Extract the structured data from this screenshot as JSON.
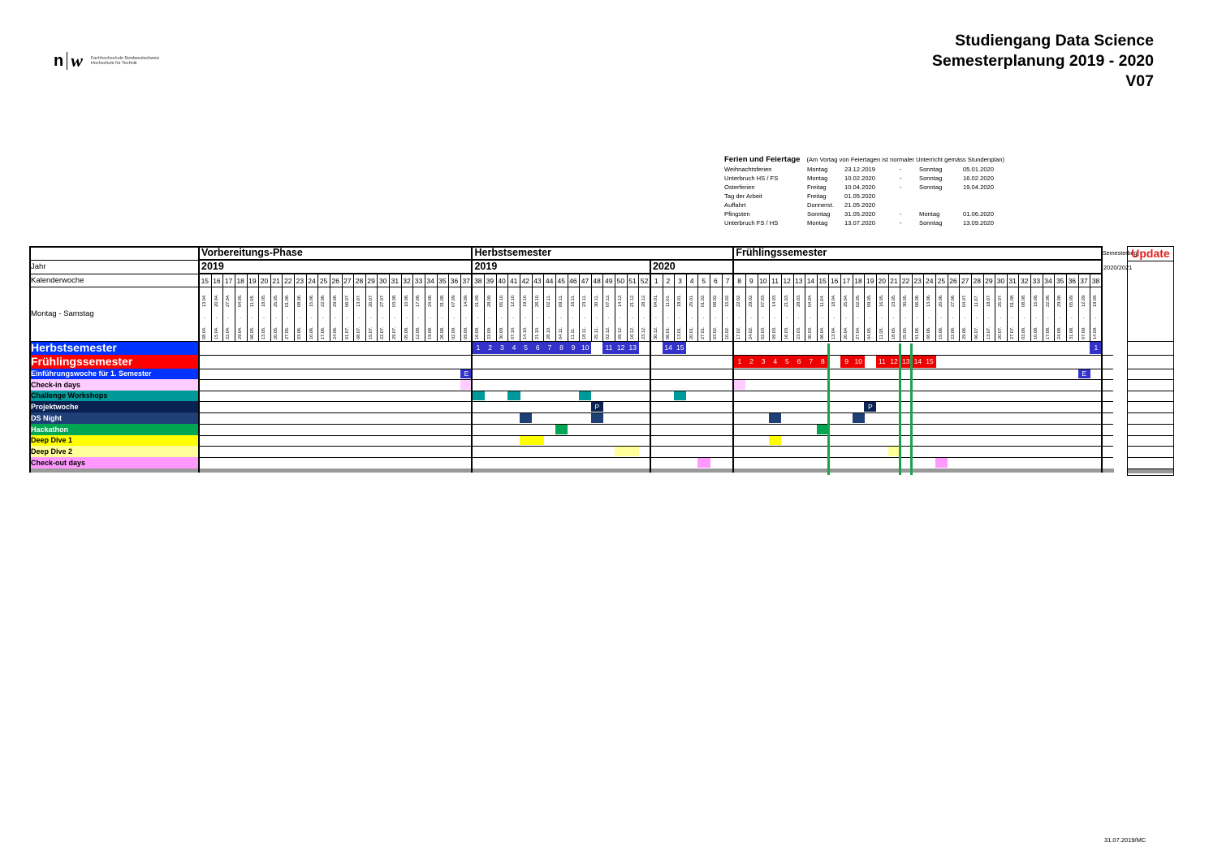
{
  "logo": {
    "mark_n": "n",
    "mark_w": "w",
    "line1": "Fachhochschule Nordwestschweiz",
    "line2": "Hochschule für Technik"
  },
  "title": {
    "line1": "Studiengang Data Science",
    "line2": "Semesterplanung 2019 - 2020",
    "line3": "V07"
  },
  "holidays": {
    "heading": "Ferien und Feiertage",
    "note": "(Am Vortag von Feiertagen ist normaler Unterricht gemäss Stundenplan)",
    "rows": [
      [
        "Weihnachtsferien",
        "Montag",
        "23.12.2019",
        "-",
        "Sonntag",
        "05.01.2020"
      ],
      [
        "Unterbruch HS / FS",
        "Montag",
        "10.02.2020",
        "-",
        "Sonntag",
        "16.02.2020"
      ],
      [
        "Osterferien",
        "Freitag",
        "10.04.2020",
        "-",
        "Sonntag",
        "19.04.2020"
      ],
      [
        "Tag der Arbeit",
        "Freitag",
        "01.05.2020",
        "",
        "",
        ""
      ],
      [
        "Auffahrt",
        "Donnerst.",
        "21.05.2020",
        "",
        "",
        ""
      ],
      [
        "Pfingsten",
        "Sonntag",
        "31.05.2020",
        "-",
        "Montag",
        "01.06.2020"
      ],
      [
        "Unterbruch FS / HS",
        "Montag",
        "13.07.2020",
        "-",
        "Sonntag",
        "13.09.2020"
      ]
    ]
  },
  "plan": {
    "phases": [
      {
        "label": "Vorbereitungs-Phase",
        "start": 0,
        "span": 23
      },
      {
        "label": "Herbstsemester",
        "start": 23,
        "span": 22
      },
      {
        "label": "Frühlingssemester",
        "start": 45,
        "span": 30
      }
    ],
    "years": [
      {
        "label": "2019",
        "start": 0,
        "span": 23
      },
      {
        "label": "2019",
        "start": 23,
        "span": 15
      },
      {
        "label": "2020",
        "start": 38,
        "span": 37
      }
    ],
    "row_labels": {
      "jahr": "Jahr",
      "kalenderwoche": "Kalenderwoche",
      "montag_samstag": "Montag - Samstag"
    },
    "next_semester": {
      "label": "Semesterbeginn",
      "year": "2020/2021"
    },
    "update_label": "Update",
    "weeks": [
      {
        "kw": "15",
        "from": "08.04.",
        "to": "13.04."
      },
      {
        "kw": "16",
        "from": "15.04.",
        "to": "20.04."
      },
      {
        "kw": "17",
        "from": "22.04.",
        "to": "27.04."
      },
      {
        "kw": "18",
        "from": "29.04.",
        "to": "04.05."
      },
      {
        "kw": "19",
        "from": "06.05.",
        "to": "11.05."
      },
      {
        "kw": "20",
        "from": "13.05.",
        "to": "18.05."
      },
      {
        "kw": "21",
        "from": "20.05.",
        "to": "25.05."
      },
      {
        "kw": "22",
        "from": "27.05.",
        "to": "01.06."
      },
      {
        "kw": "23",
        "from": "03.06.",
        "to": "08.06."
      },
      {
        "kw": "24",
        "from": "10.06.",
        "to": "15.06."
      },
      {
        "kw": "25",
        "from": "17.06.",
        "to": "22.06."
      },
      {
        "kw": "26",
        "from": "24.06.",
        "to": "29.06."
      },
      {
        "kw": "27",
        "from": "01.07.",
        "to": "06.07."
      },
      {
        "kw": "28",
        "from": "08.07.",
        "to": "13.07."
      },
      {
        "kw": "29",
        "from": "15.07.",
        "to": "20.07."
      },
      {
        "kw": "30",
        "from": "22.07.",
        "to": "27.07."
      },
      {
        "kw": "31",
        "from": "29.07.",
        "to": "03.08."
      },
      {
        "kw": "32",
        "from": "05.08.",
        "to": "10.08."
      },
      {
        "kw": "33",
        "from": "12.08.",
        "to": "17.08."
      },
      {
        "kw": "34",
        "from": "19.08.",
        "to": "24.08."
      },
      {
        "kw": "35",
        "from": "26.08.",
        "to": "31.08."
      },
      {
        "kw": "36",
        "from": "02.09.",
        "to": "07.09."
      },
      {
        "kw": "37",
        "from": "09.09.",
        "to": "14.09."
      },
      {
        "kw": "38",
        "from": "16.09.",
        "to": "21.09."
      },
      {
        "kw": "39",
        "from": "23.09.",
        "to": "28.09."
      },
      {
        "kw": "40",
        "from": "30.09.",
        "to": "05.10."
      },
      {
        "kw": "41",
        "from": "07.10.",
        "to": "12.10."
      },
      {
        "kw": "42",
        "from": "14.10.",
        "to": "19.10."
      },
      {
        "kw": "43",
        "from": "21.10.",
        "to": "26.10."
      },
      {
        "kw": "44",
        "from": "28.10.",
        "to": "02.11."
      },
      {
        "kw": "45",
        "from": "04.11.",
        "to": "09.11."
      },
      {
        "kw": "46",
        "from": "11.11.",
        "to": "16.11."
      },
      {
        "kw": "47",
        "from": "18.11.",
        "to": "23.11."
      },
      {
        "kw": "48",
        "from": "25.11.",
        "to": "30.11."
      },
      {
        "kw": "49",
        "from": "02.12.",
        "to": "07.12."
      },
      {
        "kw": "50",
        "from": "09.12.",
        "to": "14.12."
      },
      {
        "kw": "51",
        "from": "16.12.",
        "to": "21.12."
      },
      {
        "kw": "52",
        "from": "23.12.",
        "to": "28.12."
      },
      {
        "kw": "1",
        "from": "30.12.",
        "to": "04.01."
      },
      {
        "kw": "2",
        "from": "06.01.",
        "to": "11.01."
      },
      {
        "kw": "3",
        "from": "13.01.",
        "to": "18.01."
      },
      {
        "kw": "4",
        "from": "20.01.",
        "to": "25.01."
      },
      {
        "kw": "5",
        "from": "27.01.",
        "to": "01.02."
      },
      {
        "kw": "6",
        "from": "03.02.",
        "to": "08.02."
      },
      {
        "kw": "7",
        "from": "10.02.",
        "to": "15.02."
      },
      {
        "kw": "8",
        "from": "17.02.",
        "to": "22.02."
      },
      {
        "kw": "9",
        "from": "24.02.",
        "to": "29.02."
      },
      {
        "kw": "10",
        "from": "02.03.",
        "to": "07.03."
      },
      {
        "kw": "11",
        "from": "09.03.",
        "to": "14.03."
      },
      {
        "kw": "12",
        "from": "16.03.",
        "to": "21.03."
      },
      {
        "kw": "13",
        "from": "23.03.",
        "to": "28.03."
      },
      {
        "kw": "14",
        "from": "30.03.",
        "to": "04.04."
      },
      {
        "kw": "15",
        "from": "06.04.",
        "to": "11.04."
      },
      {
        "kw": "16",
        "from": "13.04.",
        "to": "18.04."
      },
      {
        "kw": "17",
        "from": "20.04.",
        "to": "25.04."
      },
      {
        "kw": "18",
        "from": "27.04.",
        "to": "02.05."
      },
      {
        "kw": "19",
        "from": "04.05.",
        "to": "09.05."
      },
      {
        "kw": "20",
        "from": "11.05.",
        "to": "16.05."
      },
      {
        "kw": "21",
        "from": "18.05.",
        "to": "23.05."
      },
      {
        "kw": "22",
        "from": "25.05.",
        "to": "30.05."
      },
      {
        "kw": "23",
        "from": "01.06.",
        "to": "06.06."
      },
      {
        "kw": "24",
        "from": "08.06.",
        "to": "13.06."
      },
      {
        "kw": "25",
        "from": "15.06.",
        "to": "20.06."
      },
      {
        "kw": "26",
        "from": "22.06.",
        "to": "27.06."
      },
      {
        "kw": "27",
        "from": "29.06.",
        "to": "04.07."
      },
      {
        "kw": "28",
        "from": "06.07.",
        "to": "11.07."
      },
      {
        "kw": "29",
        "from": "13.07.",
        "to": "18.07."
      },
      {
        "kw": "30",
        "from": "20.07.",
        "to": "25.07."
      },
      {
        "kw": "31",
        "from": "27.07.",
        "to": "01.08."
      },
      {
        "kw": "32",
        "from": "03.08.",
        "to": "08.08."
      },
      {
        "kw": "33",
        "from": "10.08.",
        "to": "15.08."
      },
      {
        "kw": "34",
        "from": "17.08.",
        "to": "22.08."
      },
      {
        "kw": "35",
        "from": "24.08.",
        "to": "29.08."
      },
      {
        "kw": "36",
        "from": "31.08.",
        "to": "05.09."
      },
      {
        "kw": "37",
        "from": "07.09.",
        "to": "12.09."
      },
      {
        "kw": "38",
        "from": "14.09.",
        "to": "19.09."
      }
    ],
    "rows": [
      {
        "label": "Herbstsemester",
        "bg": "#0033ff",
        "fg": "#ffffff",
        "size": 14,
        "blocks": [
          {
            "col": 23,
            "text": "1",
            "color": "#3333cc"
          },
          {
            "col": 24,
            "text": "2",
            "color": "#3333cc"
          },
          {
            "col": 25,
            "text": "3",
            "color": "#3333cc"
          },
          {
            "col": 26,
            "text": "4",
            "color": "#3333cc"
          },
          {
            "col": 27,
            "text": "5",
            "color": "#3333cc"
          },
          {
            "col": 28,
            "text": "6",
            "color": "#3333cc"
          },
          {
            "col": 29,
            "text": "7",
            "color": "#3333cc"
          },
          {
            "col": 30,
            "text": "8",
            "color": "#3333cc"
          },
          {
            "col": 31,
            "text": "9",
            "color": "#3333cc"
          },
          {
            "col": 32,
            "text": "10",
            "color": "#3333cc"
          },
          {
            "col": 34,
            "text": "11",
            "color": "#3333cc"
          },
          {
            "col": 35,
            "text": "12",
            "color": "#3333cc"
          },
          {
            "col": 36,
            "text": "13",
            "color": "#3333cc"
          },
          {
            "col": 39,
            "text": "14",
            "color": "#3333cc"
          },
          {
            "col": 40,
            "text": "15",
            "color": "#3333cc"
          },
          {
            "col": 75,
            "text": "1",
            "color": "#3333cc"
          }
        ]
      },
      {
        "label": "Frühlingssemester",
        "bg": "#ff0000",
        "fg": "#ffffff",
        "size": 14,
        "blocks": [
          {
            "col": 45,
            "text": "1",
            "color": "#ee0000"
          },
          {
            "col": 46,
            "text": "2",
            "color": "#ee0000"
          },
          {
            "col": 47,
            "text": "3",
            "color": "#ee0000"
          },
          {
            "col": 48,
            "text": "4",
            "color": "#ee0000"
          },
          {
            "col": 49,
            "text": "5",
            "color": "#ee0000"
          },
          {
            "col": 50,
            "text": "6",
            "color": "#ee0000"
          },
          {
            "col": 51,
            "text": "7",
            "color": "#ee0000"
          },
          {
            "col": 52,
            "text": "8",
            "color": "#ee0000"
          },
          {
            "col": 54,
            "text": "9",
            "color": "#ee0000"
          },
          {
            "col": 55,
            "text": "10",
            "color": "#ee0000"
          },
          {
            "col": 57,
            "text": "11",
            "color": "#ee0000"
          },
          {
            "col": 58,
            "text": "12",
            "color": "#ee0000"
          },
          {
            "col": 59,
            "text": "13",
            "color": "#ee0000"
          },
          {
            "col": 60,
            "text": "14",
            "color": "#ee0000"
          },
          {
            "col": 61,
            "text": "15",
            "color": "#ee0000"
          }
        ]
      },
      {
        "label": "Einführungswoche für 1. Semester",
        "bg": "#0033ff",
        "fg": "#ffffff",
        "size": 9,
        "blocks": [
          {
            "col": 22,
            "text": "E",
            "color": "#3333cc"
          },
          {
            "col": 74,
            "text": "E",
            "color": "#3333cc"
          }
        ]
      },
      {
        "label": "Check-in days",
        "bg": "#ffccff",
        "fg": "#000000",
        "size": 9,
        "blocks": [
          {
            "col": 22,
            "text": "",
            "color": "#ffccff"
          },
          {
            "col": 45,
            "text": "",
            "color": "#ffccff"
          }
        ]
      },
      {
        "label": "Challenge Workshops",
        "bg": "#009999",
        "fg": "#000000",
        "size": 9,
        "blocks": [
          {
            "col": 23,
            "text": "",
            "color": "#009999"
          },
          {
            "col": 26,
            "text": "",
            "color": "#009999"
          },
          {
            "col": 32,
            "text": "",
            "color": "#009999"
          },
          {
            "col": 40,
            "text": "",
            "color": "#009999"
          }
        ]
      },
      {
        "label": "Projektwoche",
        "bg": "#0a2252",
        "fg": "#ffffff",
        "size": 9,
        "blocks": [
          {
            "col": 33,
            "text": "P",
            "color": "#0a2252"
          },
          {
            "col": 56,
            "text": "P",
            "color": "#0a2252"
          }
        ]
      },
      {
        "label": "DS Night",
        "bg": "#1f3f77",
        "fg": "#ffffff",
        "size": 9,
        "blocks": [
          {
            "col": 27,
            "text": "",
            "color": "#1f3f77"
          },
          {
            "col": 33,
            "text": "",
            "color": "#1f3f77"
          },
          {
            "col": 48,
            "text": "",
            "color": "#1f3f77"
          },
          {
            "col": 55,
            "text": "",
            "color": "#1f3f77"
          }
        ]
      },
      {
        "label": "Hackathon",
        "bg": "#00a651",
        "fg": "#ffffff",
        "size": 9,
        "blocks": [
          {
            "col": 30,
            "text": "",
            "color": "#00a651"
          },
          {
            "col": 52,
            "text": "",
            "color": "#00a651"
          }
        ]
      },
      {
        "label": "Deep Dive 1",
        "bg": "#ffff00",
        "fg": "#000000",
        "size": 9,
        "blocks": [
          {
            "col": 27,
            "text": "",
            "color": "#ffff00"
          },
          {
            "col": 28,
            "text": "",
            "color": "#ffff00"
          },
          {
            "col": 48,
            "text": "",
            "color": "#ffff00"
          }
        ]
      },
      {
        "label": "Deep Dive 2",
        "bg": "#ffff99",
        "fg": "#000000",
        "size": 9,
        "blocks": [
          {
            "col": 35,
            "text": "",
            "color": "#ffff99"
          },
          {
            "col": 36,
            "text": "",
            "color": "#ffff99"
          },
          {
            "col": 58,
            "text": "",
            "color": "#ffff99"
          }
        ]
      },
      {
        "label": "Check-out days",
        "bg": "#ff99ff",
        "fg": "#000000",
        "size": 9,
        "blocks": [
          {
            "col": 42,
            "text": "",
            "color": "#ff99ff"
          },
          {
            "col": 62,
            "text": "",
            "color": "#ff99ff"
          }
        ]
      }
    ],
    "green_lines_after_col": [
      52,
      58,
      59
    ],
    "colors": {
      "grid": "#000000",
      "footer_bar": "#999999",
      "green_line": "#1aa34a",
      "update_text": "#e02020"
    }
  },
  "footer": "31.07.2019/MC"
}
